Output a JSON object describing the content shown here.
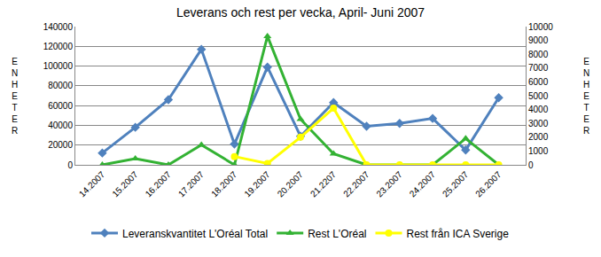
{
  "chart_data": {
    "type": "line",
    "title": "Leverans och rest per vecka, April- Juni 2007",
    "y_label": "ENHETER",
    "y2_label": "ENHETER",
    "categories": [
      "14.2007",
      "15.2007",
      "16.2007",
      "17.2007",
      "18.2007",
      "19.2007",
      "20.2007",
      "21.2207",
      "22.2007",
      "23.2007",
      "24.2007",
      "25.2007",
      "26.2007"
    ],
    "series": [
      {
        "name": "Leveranskvantitet L'Oréal Total",
        "color": "#4f81bd",
        "marker": "diamond",
        "values": [
          12000,
          38000,
          66000,
          117000,
          21000,
          99000,
          29000,
          63000,
          39000,
          42000,
          47000,
          15000,
          68000
        ]
      },
      {
        "name": "Rest L'Oréal",
        "color": "#33b233",
        "marker": "triangle-up",
        "axis": "y2",
        "values": [
          0,
          450,
          0,
          1450,
          0,
          9300,
          3300,
          800,
          0,
          0,
          0,
          1900,
          0
        ]
      },
      {
        "name": "Rest från ICA Sverige",
        "color": "#ffff00",
        "marker": "circle",
        "axis": "y2",
        "values": [
          null,
          null,
          null,
          null,
          600,
          100,
          2000,
          4100,
          0,
          0,
          0,
          0,
          0
        ]
      }
    ],
    "ylim": [
      0,
      140000
    ],
    "yticks": [
      0,
      20000,
      40000,
      60000,
      80000,
      100000,
      120000,
      140000
    ],
    "y2lim": [
      0,
      10000
    ],
    "y2ticks": [
      0,
      1000,
      2000,
      3000,
      4000,
      5000,
      6000,
      7000,
      8000,
      9000,
      10000
    ],
    "grid": true,
    "legend": "bottom"
  }
}
